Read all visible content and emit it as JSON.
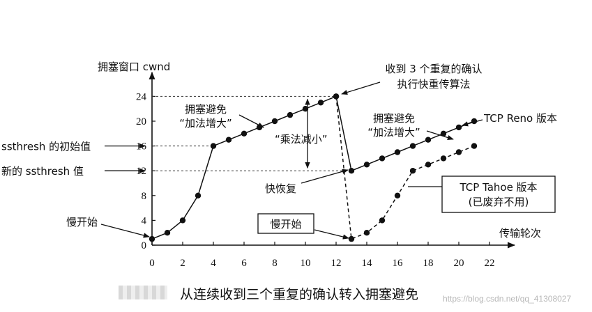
{
  "chart_data": {
    "type": "line",
    "ylabel": "拥塞窗口 cwnd",
    "xlabel": "传输轮次",
    "xlim": [
      0,
      22
    ],
    "ylim": [
      0,
      24
    ],
    "x_ticks": [
      0,
      2,
      4,
      6,
      8,
      10,
      12,
      14,
      16,
      18,
      20,
      22
    ],
    "y_ticks": [
      0,
      4,
      8,
      12,
      16,
      20,
      24
    ],
    "grid": false,
    "series": [
      {
        "name": "TCP Reno 版本",
        "style": "solid",
        "points": [
          [
            0,
            1
          ],
          [
            1,
            2
          ],
          [
            2,
            4
          ],
          [
            3,
            8
          ],
          [
            4,
            16
          ],
          [
            5,
            17
          ],
          [
            6,
            18
          ],
          [
            7,
            19
          ],
          [
            8,
            20
          ],
          [
            9,
            21
          ],
          [
            10,
            22
          ],
          [
            11,
            23
          ],
          [
            12,
            24
          ],
          [
            13,
            12
          ],
          [
            14,
            13
          ],
          [
            15,
            14
          ],
          [
            16,
            15
          ],
          [
            17,
            16
          ],
          [
            18,
            17
          ],
          [
            19,
            18
          ],
          [
            20,
            19
          ],
          [
            21,
            20
          ]
        ]
      },
      {
        "name": "TCP Tahoe 版本",
        "style": "dashed",
        "points": [
          [
            12,
            24
          ],
          [
            13,
            1
          ],
          [
            14,
            2
          ],
          [
            15,
            4
          ],
          [
            16,
            8
          ],
          [
            17,
            12
          ],
          [
            18,
            13
          ],
          [
            19,
            14
          ],
          [
            20,
            15
          ],
          [
            21,
            16
          ]
        ]
      }
    ],
    "reference_lines": [
      {
        "y": 24,
        "x_to": 12
      },
      {
        "y": 16,
        "x_to": 4
      },
      {
        "y": 12,
        "x_to": 13
      }
    ],
    "annotations": {
      "ssthresh_initial": "ssthresh 的初始值",
      "ssthresh_new": "新的 ssthresh 值",
      "slow_start_1": "慢开始",
      "slow_start_2": "慢开始",
      "ca1_line1": "拥塞避免",
      "ca1_line2": "“加法增大”",
      "ca2_line1": "拥塞避免",
      "ca2_line2": "“加法增大”",
      "mult_decrease": "“乘法减小”",
      "three_dup_line1": "收到 3 个重复的确认",
      "three_dup_line2": "执行快重传算法",
      "fast_recovery": "快恢复",
      "reno_label": "TCP Reno 版本",
      "tahoe_line1": "TCP Tahoe 版本",
      "tahoe_line2": "(已废弃不用)"
    }
  },
  "caption": "从连续收到三个重复的确认转入拥塞避免",
  "watermark": "https://blog.csdn.net/qq_41308027"
}
